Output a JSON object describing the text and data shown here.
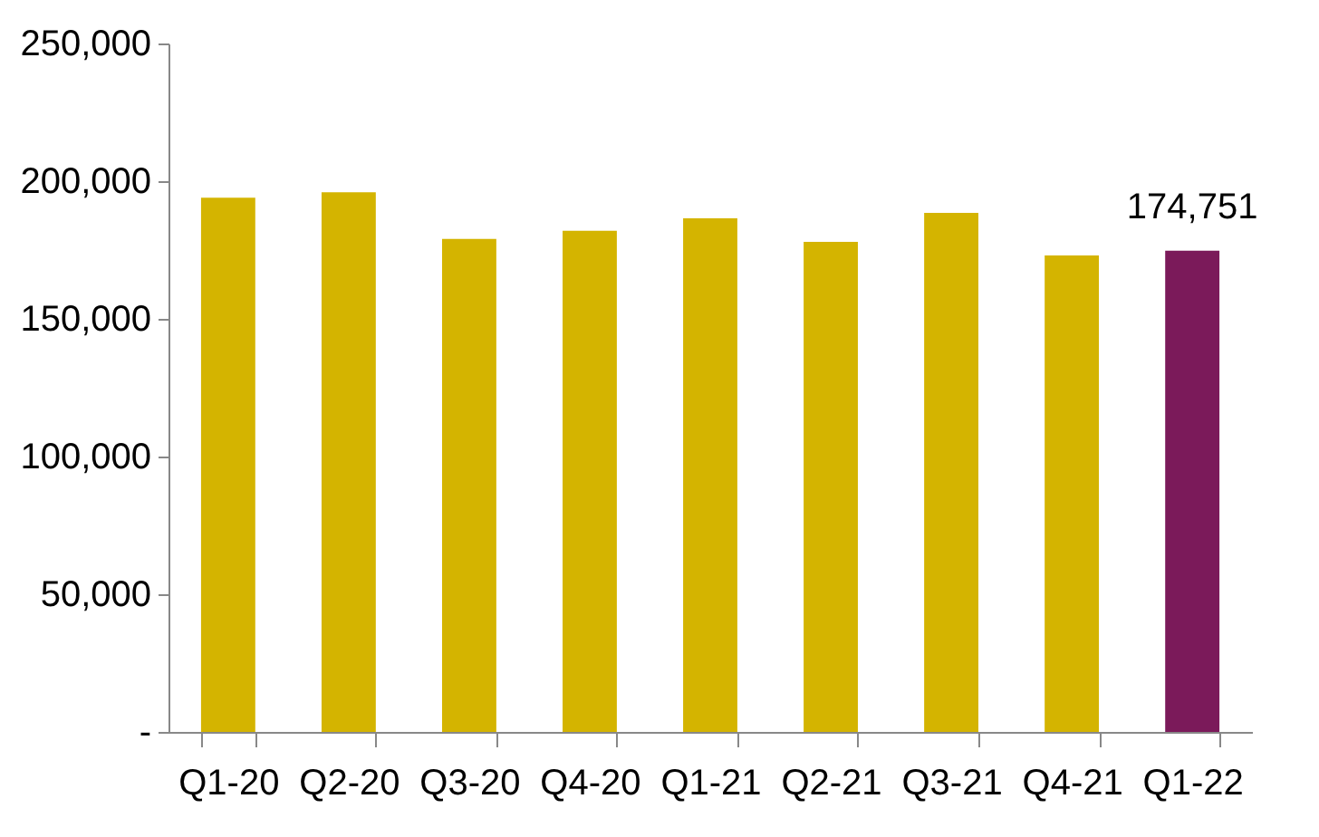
{
  "chart_data": {
    "type": "bar",
    "categories": [
      "Q1-20",
      "Q2-20",
      "Q3-20",
      "Q4-20",
      "Q1-21",
      "Q2-21",
      "Q3-21",
      "Q4-21",
      "Q1-22"
    ],
    "values": [
      194000,
      196000,
      179000,
      182000,
      186500,
      178000,
      188500,
      173000,
      174751
    ],
    "colors": [
      "#d4b400",
      "#d4b400",
      "#d4b400",
      "#d4b400",
      "#d4b400",
      "#d4b400",
      "#d4b400",
      "#d4b400",
      "#7b1a5a"
    ],
    "value_labels": [
      null,
      null,
      null,
      null,
      null,
      null,
      null,
      null,
      "174,751"
    ],
    "ylim": [
      0,
      250000
    ],
    "yticks": [
      {
        "value": 0,
        "label": "-"
      },
      {
        "value": 50000,
        "label": "50,000"
      },
      {
        "value": 100000,
        "label": "100,000"
      },
      {
        "value": 150000,
        "label": "150,000"
      },
      {
        "value": 200000,
        "label": "200,000"
      },
      {
        "value": 250000,
        "label": "250,000"
      }
    ],
    "grid": false
  }
}
